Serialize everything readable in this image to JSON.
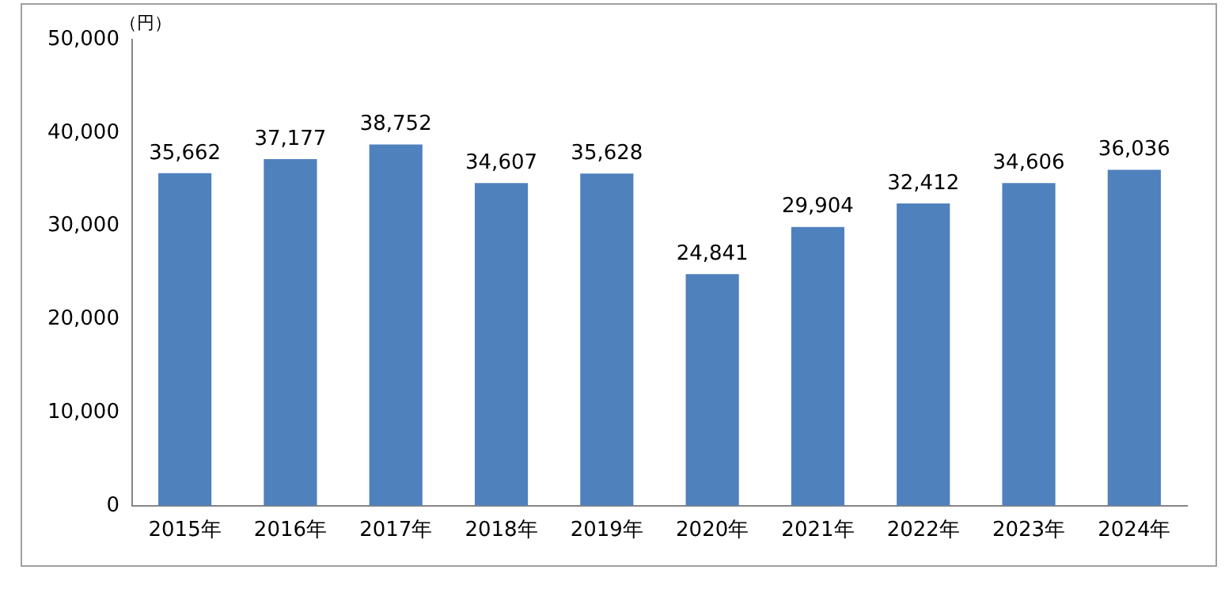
{
  "chart_data": {
    "type": "bar",
    "ylabel": "（円）",
    "categories": [
      "2015年",
      "2016年",
      "2017年",
      "2018年",
      "2019年",
      "2020年",
      "2021年",
      "2022年",
      "2023年",
      "2024年"
    ],
    "values": [
      35662,
      37177,
      38752,
      34607,
      35628,
      24841,
      29904,
      32412,
      34606,
      36036
    ],
    "value_labels": [
      "35,662",
      "37,177",
      "38,752",
      "34,607",
      "35,628",
      "24,841",
      "29,904",
      "32,412",
      "34,606",
      "36,036"
    ],
    "color": "#4f81bd",
    "ylim": [
      0,
      50000
    ],
    "yticks": [
      0,
      {
        "value": 10000,
        "label": "10,000"
      },
      {
        "value": 20000,
        "label": "20,000"
      },
      {
        "value": 30000,
        "label": "30,000"
      },
      {
        "value": 40000,
        "label": "40,000"
      },
      {
        "value": 50000,
        "label": "50,000"
      }
    ],
    "grid": false,
    "legend": false
  }
}
